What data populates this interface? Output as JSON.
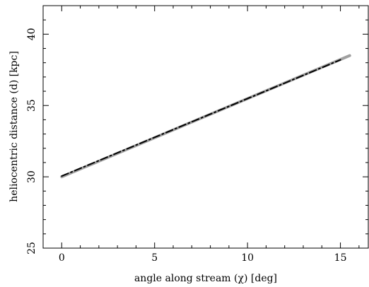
{
  "chart_data": {
    "type": "line",
    "title": "",
    "xlabel": "angle along stream (χ) [deg]",
    "ylabel": "heliocentric distance (d) [kpc]",
    "xlim": [
      -1,
      16.5
    ],
    "ylim": [
      25,
      42
    ],
    "xticks": [
      0,
      5,
      10,
      15
    ],
    "yticks": [
      25,
      30,
      35,
      40
    ],
    "x_minor_step": 1,
    "y_minor_step": 1,
    "grid": false,
    "legend": "none",
    "series": [
      {
        "style": "solid",
        "color": "#a0a0a0",
        "x": [
          0,
          15.5
        ],
        "y": [
          30.0,
          38.5
        ]
      },
      {
        "style": "dash-dot",
        "color": "#000000",
        "x": [
          0,
          15.0
        ],
        "y": [
          30.05,
          38.2
        ]
      }
    ]
  }
}
